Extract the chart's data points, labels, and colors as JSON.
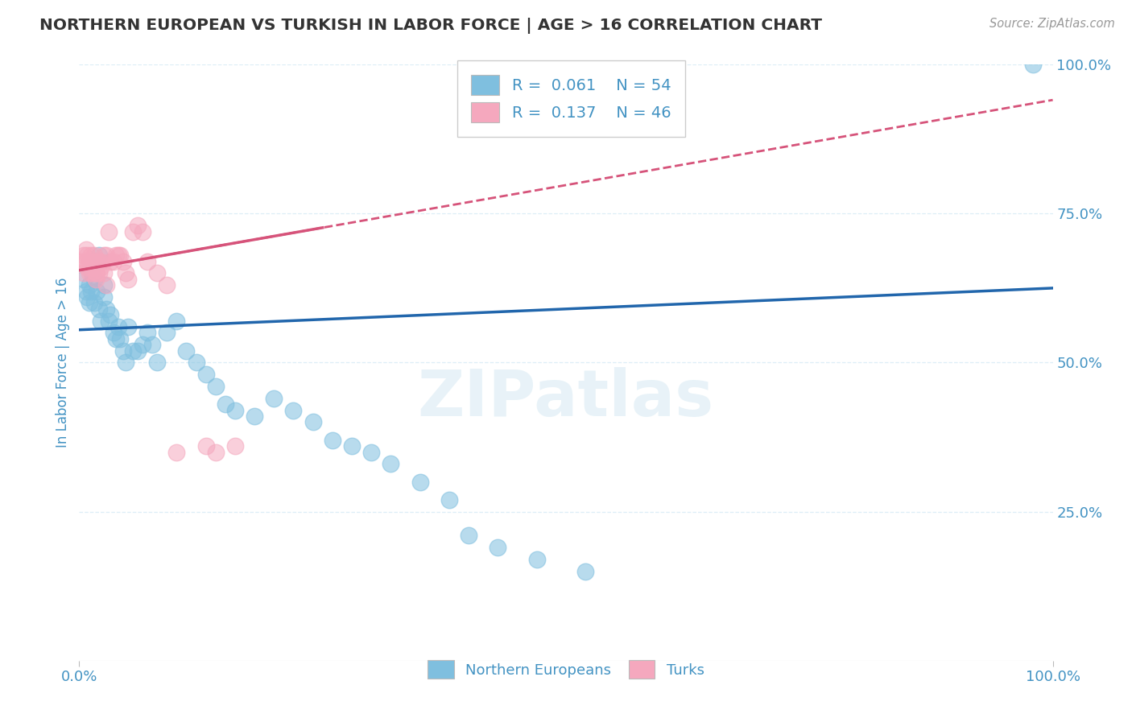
{
  "title": "NORTHERN EUROPEAN VS TURKISH IN LABOR FORCE | AGE > 16 CORRELATION CHART",
  "source": "Source: ZipAtlas.com",
  "ylabel": "In Labor Force | Age > 16",
  "xlim": [
    0,
    1.0
  ],
  "ylim": [
    0,
    1.0
  ],
  "ytick_labels": [
    "25.0%",
    "50.0%",
    "75.0%",
    "100.0%"
  ],
  "ytick_positions": [
    0.25,
    0.5,
    0.75,
    1.0
  ],
  "watermark": "ZIPatlas",
  "legend_r1": "0.061",
  "legend_n1": "54",
  "legend_r2": "0.137",
  "legend_n2": "46",
  "blue_color": "#7fbfdf",
  "pink_color": "#f5a8be",
  "blue_line_color": "#2166ac",
  "pink_line_color": "#d6537a",
  "title_color": "#333333",
  "axis_label_color": "#4393c3",
  "grid_color": "#ddeef7",
  "blue_scatter_x": [
    0.005,
    0.007,
    0.008,
    0.01,
    0.01,
    0.012,
    0.013,
    0.015,
    0.015,
    0.018,
    0.02,
    0.02,
    0.022,
    0.025,
    0.025,
    0.028,
    0.03,
    0.032,
    0.035,
    0.038,
    0.04,
    0.042,
    0.045,
    0.048,
    0.05,
    0.055,
    0.06,
    0.065,
    0.07,
    0.075,
    0.08,
    0.09,
    0.1,
    0.11,
    0.12,
    0.13,
    0.14,
    0.15,
    0.16,
    0.18,
    0.2,
    0.22,
    0.24,
    0.26,
    0.28,
    0.3,
    0.32,
    0.35,
    0.38,
    0.4,
    0.43,
    0.47,
    0.52,
    0.98
  ],
  "blue_scatter_y": [
    0.64,
    0.62,
    0.61,
    0.6,
    0.63,
    0.62,
    0.65,
    0.64,
    0.6,
    0.62,
    0.68,
    0.59,
    0.57,
    0.63,
    0.61,
    0.59,
    0.57,
    0.58,
    0.55,
    0.54,
    0.56,
    0.54,
    0.52,
    0.5,
    0.56,
    0.52,
    0.52,
    0.53,
    0.55,
    0.53,
    0.5,
    0.55,
    0.57,
    0.52,
    0.5,
    0.48,
    0.46,
    0.43,
    0.42,
    0.41,
    0.44,
    0.42,
    0.4,
    0.37,
    0.36,
    0.35,
    0.33,
    0.3,
    0.27,
    0.21,
    0.19,
    0.17,
    0.15,
    1.0
  ],
  "pink_scatter_x": [
    0.003,
    0.005,
    0.005,
    0.007,
    0.007,
    0.008,
    0.008,
    0.01,
    0.01,
    0.012,
    0.012,
    0.013,
    0.013,
    0.015,
    0.015,
    0.017,
    0.017,
    0.018,
    0.018,
    0.02,
    0.02,
    0.022,
    0.022,
    0.025,
    0.025,
    0.028,
    0.028,
    0.03,
    0.032,
    0.035,
    0.038,
    0.04,
    0.042,
    0.045,
    0.048,
    0.05,
    0.055,
    0.06,
    0.065,
    0.07,
    0.08,
    0.09,
    0.1,
    0.13,
    0.14,
    0.16
  ],
  "pink_scatter_y": [
    0.67,
    0.68,
    0.65,
    0.67,
    0.69,
    0.66,
    0.68,
    0.65,
    0.67,
    0.68,
    0.66,
    0.67,
    0.65,
    0.68,
    0.66,
    0.65,
    0.64,
    0.67,
    0.65,
    0.67,
    0.65,
    0.67,
    0.66,
    0.65,
    0.68,
    0.63,
    0.68,
    0.72,
    0.67,
    0.67,
    0.68,
    0.68,
    0.68,
    0.67,
    0.65,
    0.64,
    0.72,
    0.73,
    0.72,
    0.67,
    0.65,
    0.63,
    0.35,
    0.36,
    0.35,
    0.36
  ],
  "blue_trend_x": [
    0.0,
    1.0
  ],
  "blue_trend_y": [
    0.555,
    0.625
  ],
  "pink_trend_x": [
    0.0,
    0.35
  ],
  "pink_trend_y": [
    0.655,
    0.755
  ]
}
